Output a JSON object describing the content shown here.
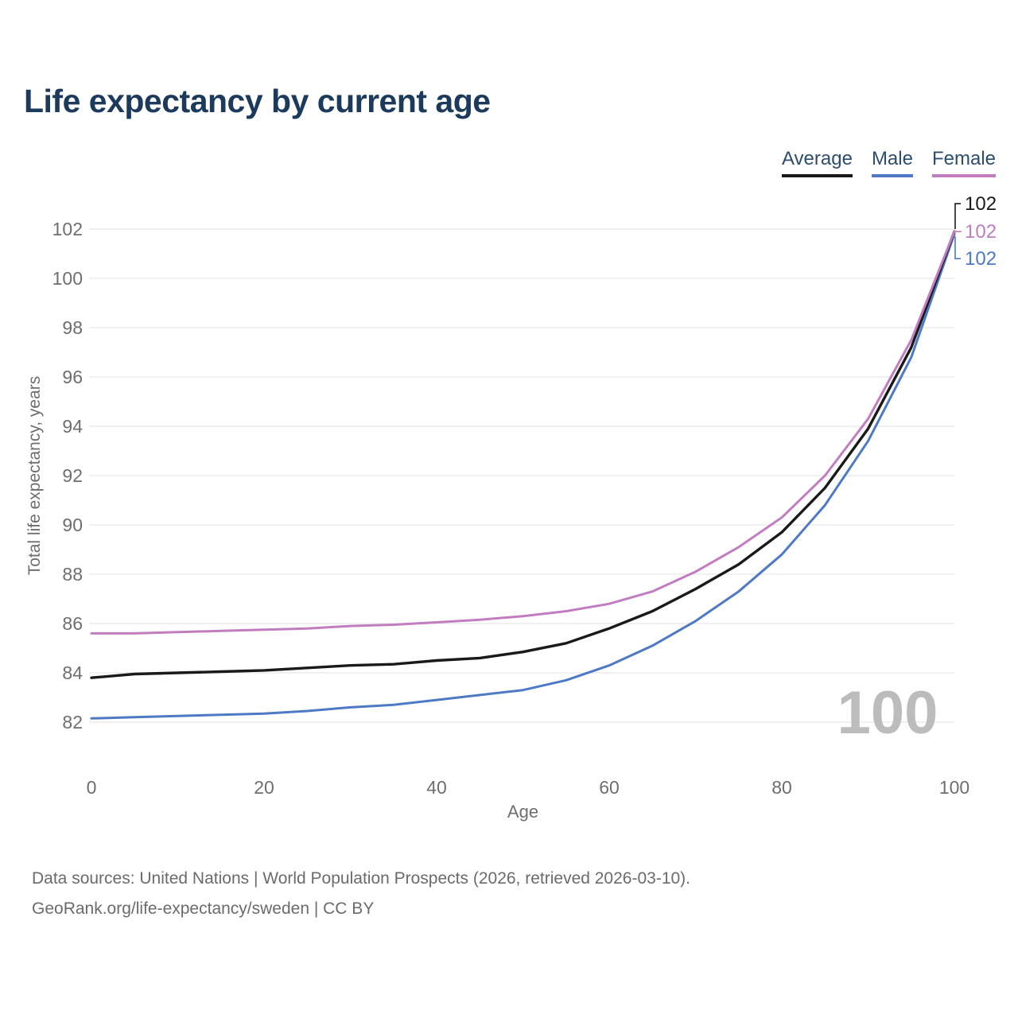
{
  "header": {
    "title": "Life expectancy by current age"
  },
  "legend": {
    "items": [
      {
        "label": "Average",
        "color": "#1a1a1a"
      },
      {
        "label": "Male",
        "color": "#4d79c5"
      },
      {
        "label": "Female",
        "color": "#c27dc0"
      }
    ]
  },
  "chart_data": {
    "type": "line",
    "title": "Life expectancy by current age",
    "xlabel": "Age",
    "ylabel": "Total life expectancy, years",
    "xlim": [
      0,
      100
    ],
    "ylim": [
      82,
      102
    ],
    "xticks": [
      0,
      20,
      40,
      60,
      80,
      100
    ],
    "yticks": [
      82,
      84,
      86,
      88,
      90,
      92,
      94,
      96,
      98,
      100,
      102
    ],
    "grid": "horizontal",
    "legend_position": "top-right",
    "watermark": "100",
    "x": [
      0,
      5,
      10,
      15,
      20,
      25,
      30,
      35,
      40,
      45,
      50,
      55,
      60,
      65,
      70,
      75,
      80,
      85,
      90,
      95,
      100
    ],
    "series": [
      {
        "name": "Average",
        "color": "#1a1a1a",
        "end_label": "102",
        "values": [
          83.8,
          83.95,
          84.0,
          84.05,
          84.1,
          84.2,
          84.3,
          84.35,
          84.5,
          84.6,
          84.85,
          85.2,
          85.8,
          86.5,
          87.4,
          88.4,
          89.7,
          91.5,
          93.9,
          97.2,
          101.9
        ]
      },
      {
        "name": "Male",
        "color": "#4d79c5",
        "end_label": "102",
        "values": [
          82.15,
          82.2,
          82.25,
          82.3,
          82.35,
          82.45,
          82.6,
          82.7,
          82.9,
          83.1,
          83.3,
          83.7,
          84.3,
          85.1,
          86.1,
          87.3,
          88.8,
          90.8,
          93.4,
          96.8,
          101.8
        ]
      },
      {
        "name": "Female",
        "color": "#c27dc0",
        "end_label": "102",
        "values": [
          85.6,
          85.6,
          85.65,
          85.7,
          85.75,
          85.8,
          85.9,
          85.95,
          86.05,
          86.15,
          86.3,
          86.5,
          86.8,
          87.3,
          88.1,
          89.1,
          90.3,
          92.0,
          94.3,
          97.5,
          101.9
        ]
      }
    ]
  },
  "footer": {
    "line1": "Data sources: United Nations | World Population Prospects (2026, retrieved 2026-03-10).",
    "line2": "GeoRank.org/life-expectancy/sweden | CC BY"
  },
  "colors": {
    "title_text": "#1c3a5c",
    "legend_text": "#2d4d6e",
    "axis_text": "#6e6e6e",
    "grid_line": "#e8e8e8",
    "watermark": "#bcbcbc",
    "footer_text": "#6b6b6b"
  }
}
